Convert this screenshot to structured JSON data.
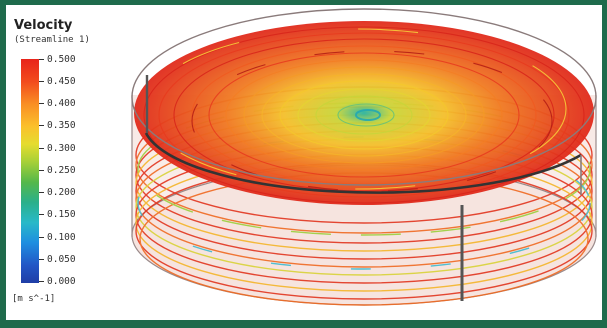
{
  "legend": {
    "title": "Velocity",
    "subtitle": "(Streamline 1)",
    "ticks": [
      "0.500",
      "0.450",
      "0.400",
      "0.350",
      "0.300",
      "0.250",
      "0.200",
      "0.150",
      "0.100",
      "0.050",
      "0.000"
    ],
    "units": "[m s^-1]"
  },
  "colors": {
    "frame": "#1f6b4c",
    "fast": "#e8231b",
    "mid": "#fbc02b",
    "slow": "#28b9c8"
  }
}
